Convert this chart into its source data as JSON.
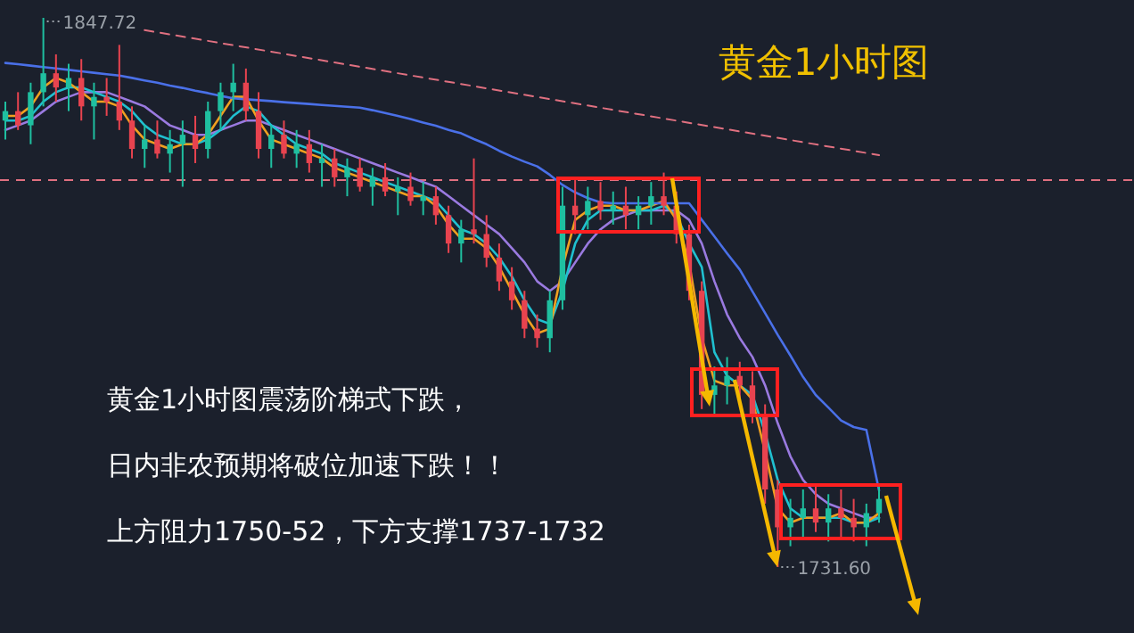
{
  "chart_data": {
    "type": "candlestick",
    "title": "黄金1小时图",
    "categories": [
      null,
      null,
      null,
      null,
      null,
      null,
      null,
      null,
      null,
      null,
      null,
      null,
      null,
      null,
      null,
      null,
      null,
      null,
      null,
      null,
      null,
      null,
      null,
      null,
      null,
      null,
      null,
      null,
      null,
      null,
      null,
      null,
      null,
      null,
      null,
      null,
      null,
      null,
      null,
      null,
      null,
      null,
      null,
      null,
      null,
      null,
      null,
      null,
      null,
      null,
      null,
      null,
      null,
      null,
      null,
      null,
      null,
      null,
      null,
      null,
      null,
      null,
      null,
      null,
      null,
      null,
      null,
      null,
      null,
      null
    ],
    "ohlc": [
      [
        1826,
        1830,
        1822,
        1828
      ],
      [
        1828,
        1832,
        1824,
        1825
      ],
      [
        1825,
        1834,
        1821,
        1832
      ],
      [
        1832,
        1847.72,
        1829,
        1836
      ],
      [
        1836,
        1840,
        1830,
        1833
      ],
      [
        1833,
        1838,
        1828,
        1835
      ],
      [
        1835,
        1839,
        1826,
        1829
      ],
      [
        1829,
        1834,
        1822,
        1831
      ],
      [
        1831,
        1835,
        1827,
        1830
      ],
      [
        1830,
        1842,
        1824,
        1826
      ],
      [
        1826,
        1829,
        1818,
        1820
      ],
      [
        1820,
        1825,
        1816,
        1822
      ],
      [
        1822,
        1826,
        1818,
        1819
      ],
      [
        1819,
        1824,
        1815,
        1821
      ],
      [
        1821,
        1826,
        1812,
        1823
      ],
      [
        1823,
        1827,
        1817,
        1820
      ],
      [
        1820,
        1830,
        1818,
        1828
      ],
      [
        1828,
        1834,
        1824,
        1832
      ],
      [
        1832,
        1838,
        1828,
        1834
      ],
      [
        1834,
        1837,
        1826,
        1828
      ],
      [
        1828,
        1832,
        1818,
        1820
      ],
      [
        1820,
        1825,
        1816,
        1823
      ],
      [
        1823,
        1826,
        1818,
        1819
      ],
      [
        1819,
        1824,
        1816,
        1821
      ],
      [
        1821,
        1824,
        1815,
        1817
      ],
      [
        1817,
        1821,
        1812,
        1818
      ],
      [
        1818,
        1820,
        1812,
        1814
      ],
      [
        1814,
        1818,
        1810,
        1816
      ],
      [
        1816,
        1818,
        1811,
        1812
      ],
      [
        1812,
        1816,
        1808,
        1814
      ],
      [
        1814,
        1817,
        1810,
        1811
      ],
      [
        1811,
        1814,
        1806,
        1812
      ],
      [
        1812,
        1815,
        1808,
        1809
      ],
      [
        1809,
        1813,
        1806,
        1810
      ],
      [
        1810,
        1812,
        1804,
        1806
      ],
      [
        1806,
        1808,
        1798,
        1800
      ],
      [
        1800,
        1805,
        1796,
        1803
      ],
      [
        1803,
        1818,
        1800,
        1802
      ],
      [
        1802,
        1806,
        1795,
        1797
      ],
      [
        1797,
        1800,
        1790,
        1792
      ],
      [
        1792,
        1795,
        1786,
        1788
      ],
      [
        1788,
        1790,
        1780,
        1782
      ],
      [
        1782,
        1785,
        1778,
        1780
      ],
      [
        1780,
        1790,
        1777,
        1788
      ],
      [
        1788,
        1812,
        1786,
        1808
      ],
      [
        1808,
        1814,
        1802,
        1806
      ],
      [
        1806,
        1812,
        1803,
        1809
      ],
      [
        1809,
        1813,
        1805,
        1807
      ],
      [
        1807,
        1811,
        1804,
        1808
      ],
      [
        1808,
        1812,
        1803,
        1806
      ],
      [
        1806,
        1810,
        1803,
        1808
      ],
      [
        1808,
        1813,
        1804,
        1810
      ],
      [
        1810,
        1815,
        1806,
        1808
      ],
      [
        1808,
        1811,
        1800,
        1802
      ],
      [
        1802,
        1804,
        1788,
        1790
      ],
      [
        1790,
        1792,
        1765,
        1768
      ],
      [
        1768,
        1774,
        1764,
        1770
      ],
      [
        1770,
        1776,
        1766,
        1772
      ],
      [
        1772,
        1775,
        1767,
        1770
      ],
      [
        1770,
        1773,
        1762,
        1764
      ],
      [
        1764,
        1766,
        1745,
        1748
      ],
      [
        1748,
        1750,
        1731.6,
        1740
      ],
      [
        1740,
        1746,
        1736,
        1742
      ],
      [
        1742,
        1748,
        1738,
        1744
      ],
      [
        1744,
        1749,
        1739,
        1741
      ],
      [
        1741,
        1747,
        1737,
        1744
      ],
      [
        1744,
        1748,
        1738,
        1742
      ],
      [
        1742,
        1746,
        1737,
        1740
      ],
      [
        1740,
        1745,
        1736,
        1743
      ],
      [
        1743,
        1749,
        1741,
        1746
      ]
    ],
    "colors": [
      "#1fbfa0",
      "#e8434f",
      "#1fbfa0",
      "#1fbfa0",
      "#e8434f",
      "#1fbfa0",
      "#e8434f",
      "#1fbfa0",
      "#e8434f",
      "#e8434f",
      "#e8434f",
      "#1fbfa0",
      "#e8434f",
      "#1fbfa0",
      "#1fbfa0",
      "#e8434f",
      "#1fbfa0",
      "#1fbfa0",
      "#1fbfa0",
      "#e8434f",
      "#e8434f",
      "#1fbfa0",
      "#e8434f",
      "#1fbfa0",
      "#e8434f",
      "#1fbfa0",
      "#e8434f",
      "#1fbfa0",
      "#e8434f",
      "#1fbfa0",
      "#e8434f",
      "#1fbfa0",
      "#e8434f",
      "#1fbfa0",
      "#e8434f",
      "#e8434f",
      "#1fbfa0",
      "#e8434f",
      "#e8434f",
      "#e8434f",
      "#e8434f",
      "#e8434f",
      "#e8434f",
      "#1fbfa0",
      "#1fbfa0",
      "#e8434f",
      "#1fbfa0",
      "#e8434f",
      "#1fbfa0",
      "#e8434f",
      "#1fbfa0",
      "#1fbfa0",
      "#e8434f",
      "#e8434f",
      "#e8434f",
      "#e8434f",
      "#1fbfa0",
      "#1fbfa0",
      "#e8434f",
      "#e8434f",
      "#e8434f",
      "#e8434f",
      "#1fbfa0",
      "#1fbfa0",
      "#e8434f",
      "#1fbfa0",
      "#e8434f",
      "#e8434f",
      "#1fbfa0",
      "#1fbfa0"
    ],
    "series": [
      {
        "type": "line",
        "color": "#9a7ae0",
        "values": [
          1824,
          1825,
          1826,
          1828,
          1830,
          1831,
          1832,
          1832,
          1832,
          1831,
          1830,
          1829,
          1827,
          1825,
          1824,
          1823,
          1823,
          1824,
          1825,
          1826,
          1826,
          1825,
          1824,
          1823,
          1822,
          1821,
          1820,
          1819,
          1818,
          1817,
          1816,
          1815,
          1814,
          1813,
          1812,
          1810,
          1808,
          1806,
          1804,
          1802,
          1799,
          1796,
          1792,
          1790,
          1792,
          1796,
          1800,
          1803,
          1805,
          1806,
          1807,
          1807,
          1807,
          1807,
          1805,
          1800,
          1792,
          1785,
          1780,
          1776,
          1770,
          1762,
          1755,
          1750,
          1747,
          1745,
          1744,
          1743,
          1742,
          1742
        ]
      },
      {
        "type": "line",
        "color": "#20c0d0",
        "values": [
          1826,
          1826,
          1827,
          1830,
          1832,
          1833,
          1833,
          1832,
          1831,
          1830,
          1828,
          1825,
          1823,
          1822,
          1821,
          1821,
          1822,
          1824,
          1827,
          1829,
          1828,
          1825,
          1823,
          1821,
          1820,
          1819,
          1817,
          1816,
          1815,
          1814,
          1813,
          1812,
          1811,
          1810,
          1809,
          1806,
          1803,
          1802,
          1800,
          1797,
          1793,
          1788,
          1784,
          1783,
          1790,
          1800,
          1805,
          1807,
          1807,
          1807,
          1807,
          1807,
          1808,
          1806,
          1800,
          1795,
          1777,
          1772,
          1770,
          1768,
          1760,
          1750,
          1744,
          1742,
          1742,
          1742,
          1742,
          1741,
          1741,
          1742
        ]
      },
      {
        "type": "line",
        "color": "#f0a020",
        "values": [
          1827,
          1827,
          1829,
          1833,
          1835,
          1834,
          1832,
          1830,
          1830,
          1829,
          1825,
          1822,
          1821,
          1820,
          1821,
          1821,
          1823,
          1827,
          1831,
          1831,
          1826,
          1822,
          1821,
          1820,
          1819,
          1818,
          1816,
          1815,
          1814,
          1813,
          1812,
          1811,
          1810,
          1810,
          1808,
          1804,
          1801,
          1801,
          1799,
          1795,
          1790,
          1785,
          1781,
          1782,
          1795,
          1805,
          1807,
          1808,
          1808,
          1807,
          1807,
          1808,
          1809,
          1805,
          1796,
          1780,
          1771,
          1770,
          1770,
          1767,
          1756,
          1744,
          1741,
          1742,
          1742,
          1742,
          1743,
          1741,
          1741,
          1743
        ]
      },
      {
        "type": "line",
        "color": "#4a70e8",
        "values": [
          1838.2,
          1837.9,
          1837.6,
          1837.3,
          1837,
          1836.7,
          1836.4,
          1836.1,
          1835.8,
          1835.5,
          1835,
          1834.5,
          1834,
          1833.4,
          1832.9,
          1832.3,
          1831.8,
          1831.2,
          1830.7,
          1830.5,
          1830.3,
          1830.1,
          1829.9,
          1829.7,
          1829.5,
          1829.3,
          1829.1,
          1828.9,
          1828.7,
          1828.2,
          1827.6,
          1827,
          1826.3,
          1825.6,
          1824.9,
          1824,
          1823.3,
          1822.1,
          1821,
          1819.6,
          1818.4,
          1817.3,
          1816.3,
          1814.5,
          1812.4,
          1810.8,
          1809.6,
          1808.7,
          1808.5,
          1808.5,
          1808.5,
          1808.5,
          1808.5,
          1808.5,
          1808.5,
          1805,
          1801.5,
          1797.9,
          1794.5,
          1789.9,
          1785.3,
          1780.7,
          1776.3,
          1771.8,
          1768,
          1765.3,
          1762.6,
          1761.2,
          1760.6,
          1747.8
        ]
      },
      {
        "type": "line",
        "color": "#e07080",
        "line_style": "dashed",
        "values": [
          null,
          null,
          null,
          null,
          null,
          null,
          null,
          null,
          null,
          null,
          null,
          1845.1,
          null,
          null,
          null,
          null,
          null,
          null,
          null,
          null,
          null,
          null,
          null,
          null,
          null,
          null,
          null,
          null,
          null,
          null,
          null,
          null,
          null,
          null,
          null,
          null,
          null,
          null,
          null,
          null,
          null,
          null,
          null,
          null,
          null,
          null,
          null,
          null,
          null,
          null,
          null,
          null,
          null,
          null,
          null,
          null,
          null,
          null,
          null,
          null,
          null,
          null,
          null,
          null,
          null,
          null,
          null,
          null,
          null,
          1818.7
        ]
      }
    ],
    "ref_lines": [
      {
        "axis": "y",
        "value": 1813.4,
        "color": "#e07080",
        "line_style": "dashed"
      }
    ],
    "annotations": [
      "1847.72",
      "1731.60",
      "黄金1小时图震荡阶梯式下跌，",
      "日内非农预期将破位加速下跌！！",
      "上方阻力1750-52，下方支撑1737-1732"
    ],
    "grid": false
  }
}
